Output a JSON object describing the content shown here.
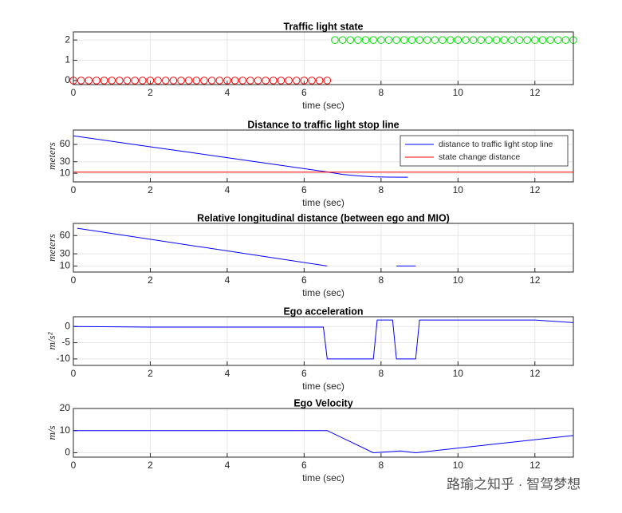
{
  "chart_data": [
    {
      "type": "scatter",
      "title": "Traffic light state",
      "xlabel": "time (sec)",
      "xlim": [
        0,
        13
      ],
      "xticks": [
        0,
        2,
        4,
        6,
        8,
        10,
        12
      ],
      "ylim": [
        -0.2,
        2.4
      ],
      "yticks": [
        0,
        1,
        2
      ],
      "grid": true,
      "series": [
        {
          "color": "#ff0000",
          "x": [
            0,
            0.2,
            0.4,
            0.6,
            0.8,
            1,
            1.2,
            1.4,
            1.6,
            1.8,
            2,
            2.2,
            2.4,
            2.6,
            2.8,
            3,
            3.2,
            3.4,
            3.6,
            3.8,
            4,
            4.2,
            4.4,
            4.6,
            4.8,
            5,
            5.2,
            5.4,
            5.6,
            5.8,
            6,
            6.2,
            6.4,
            6.6
          ],
          "values": [
            0,
            0,
            0,
            0,
            0,
            0,
            0,
            0,
            0,
            0,
            0,
            0,
            0,
            0,
            0,
            0,
            0,
            0,
            0,
            0,
            0,
            0,
            0,
            0,
            0,
            0,
            0,
            0,
            0,
            0,
            0,
            0,
            0,
            0
          ]
        },
        {
          "color": "#00e000",
          "x": [
            6.8,
            7,
            7.2,
            7.4,
            7.6,
            7.8,
            8,
            8.2,
            8.4,
            8.6,
            8.8,
            9,
            9.2,
            9.4,
            9.6,
            9.8,
            10,
            10.2,
            10.4,
            10.6,
            10.8,
            11,
            11.2,
            11.4,
            11.6,
            11.8,
            12,
            12.2,
            12.4,
            12.6,
            12.8,
            13
          ],
          "values": [
            2,
            2,
            2,
            2,
            2,
            2,
            2,
            2,
            2,
            2,
            2,
            2,
            2,
            2,
            2,
            2,
            2,
            2,
            2,
            2,
            2,
            2,
            2,
            2,
            2,
            2,
            2,
            2,
            2,
            2,
            2,
            2
          ]
        }
      ]
    },
    {
      "type": "line",
      "title": "Distance to traffic light stop line",
      "xlabel": "time (sec)",
      "ylabel": "meters",
      "xlim": [
        0,
        13
      ],
      "xticks": [
        0,
        2,
        4,
        6,
        8,
        10,
        12
      ],
      "ylim": [
        -5,
        85
      ],
      "yticks": [
        10,
        30,
        60
      ],
      "grid": true,
      "legend": "upper right",
      "series": [
        {
          "name": "distance to traffic light stop line",
          "color": "#0000ff",
          "x": [
            0,
            1,
            2,
            3,
            4,
            5,
            6,
            6.6,
            7,
            7.4,
            7.8,
            8.2,
            8.7
          ],
          "values": [
            75,
            65.5,
            56,
            46.5,
            37,
            27.5,
            18,
            12.3,
            8,
            5.5,
            3.8,
            3.3,
            3.2
          ]
        },
        {
          "name": "state change distance",
          "color": "#ff0000",
          "x": [
            0,
            13
          ],
          "values": [
            12,
            12
          ]
        }
      ]
    },
    {
      "type": "line",
      "title": "Relative longitudinal distance (between ego and MIO)",
      "xlabel": "time (sec)",
      "ylabel": "meters",
      "xlim": [
        0,
        13
      ],
      "xticks": [
        0,
        2,
        4,
        6,
        8,
        10,
        12
      ],
      "ylim": [
        0,
        80
      ],
      "yticks": [
        10,
        30,
        60
      ],
      "grid": true,
      "series": [
        {
          "color": "#0000ff",
          "x": [
            0.1,
            6.6,
            7.5,
            8.4,
            8.9
          ],
          "values": [
            72,
            10,
            null,
            10,
            10
          ]
        }
      ]
    },
    {
      "type": "line",
      "title": "Ego acceleration",
      "xlabel": "time (sec)",
      "ylabel": "m/s²",
      "xlim": [
        0,
        13
      ],
      "xticks": [
        0,
        2,
        4,
        6,
        8,
        10,
        12
      ],
      "ylim": [
        -12,
        3
      ],
      "yticks": [
        -10,
        -5,
        0
      ],
      "grid": true,
      "series": [
        {
          "color": "#0000ff",
          "x": [
            0,
            2,
            6.5,
            6.6,
            7.8,
            7.9,
            8.3,
            8.4,
            8.9,
            9.0,
            12,
            13
          ],
          "values": [
            0,
            -0.2,
            -0.2,
            -10,
            -10,
            2,
            2,
            -10,
            -10,
            2,
            2,
            1.2
          ]
        }
      ]
    },
    {
      "type": "line",
      "title": "Ego Velocity",
      "xlabel": "time (sec)",
      "ylabel": "m/s",
      "xlim": [
        0,
        13
      ],
      "xticks": [
        0,
        2,
        4,
        6,
        8,
        10,
        12
      ],
      "ylim": [
        -2,
        20
      ],
      "yticks": [
        0,
        10,
        20
      ],
      "grid": true,
      "series": [
        {
          "color": "#0000ff",
          "x": [
            0,
            6.6,
            7.8,
            8.5,
            8.9,
            13
          ],
          "values": [
            10,
            10,
            0,
            0.8,
            0,
            7.8
          ]
        }
      ]
    }
  ],
  "watermark": "路瑜之知乎 · 智驾梦想"
}
